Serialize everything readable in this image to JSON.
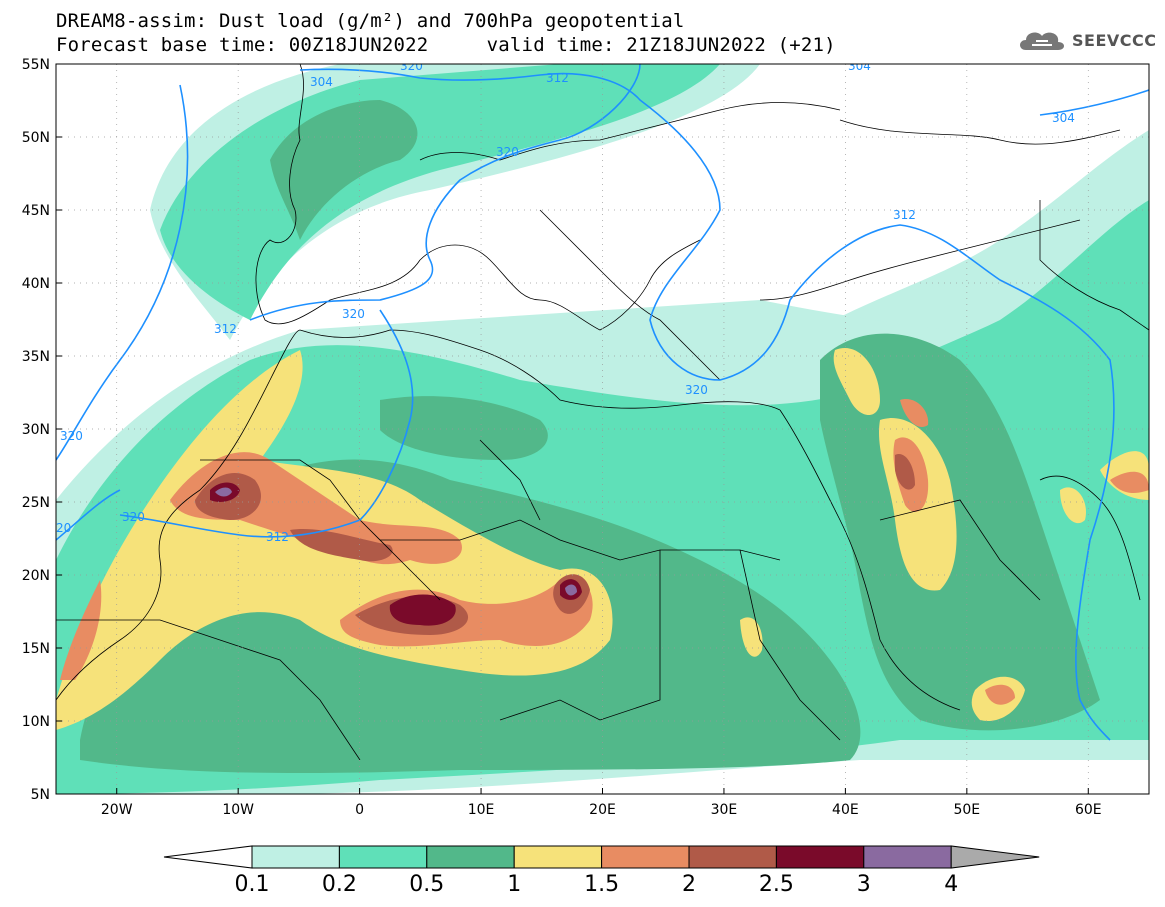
{
  "title": {
    "line1": "DREAM8-assim: Dust load (g/m²) and 700hPa geopotential",
    "line2": "Forecast base time: 00Z18JUN2022     valid time: 21Z18JUN2022 (+21)"
  },
  "logo": {
    "text": "SEEVCCC",
    "icon": "cloud-icon"
  },
  "map": {
    "lat_ticks": [
      "55N",
      "50N",
      "45N",
      "40N",
      "35N",
      "30N",
      "25N",
      "20N",
      "15N",
      "10N",
      "5N"
    ],
    "lon_ticks": [
      "20W",
      "10W",
      "0",
      "10E",
      "20E",
      "30E",
      "40E",
      "50E",
      "60E"
    ],
    "lon_range": [
      -25,
      65
    ],
    "lat_range": [
      5,
      55
    ],
    "contour_labels": [
      "304",
      "312",
      "304",
      "304",
      "320",
      "312",
      "320",
      "312",
      "320",
      "320",
      "320",
      "312",
      "20",
      "320"
    ]
  },
  "colorbar": {
    "labels": [
      "0.1",
      "0.2",
      "0.5",
      "1",
      "1.5",
      "2",
      "2.5",
      "3",
      "4"
    ],
    "colors": [
      "#ffffff",
      "#bff0e4",
      "#5fe0b8",
      "#52b88a",
      "#f6e27a",
      "#e88c62",
      "#b05a48",
      "#7a0a2a",
      "#8a6aa0",
      "#aaaaaa"
    ]
  },
  "colors": {
    "contour": "#1e90ff",
    "border": "#000000"
  }
}
